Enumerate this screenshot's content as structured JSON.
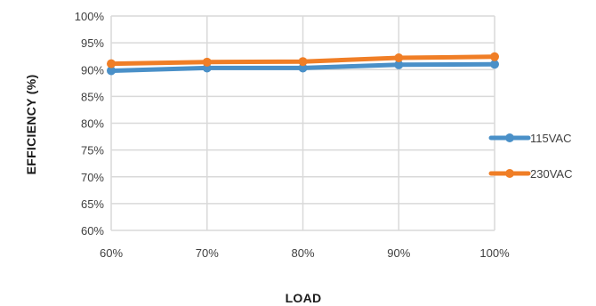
{
  "chart_data": {
    "type": "line",
    "title": "",
    "xlabel": "LOAD",
    "ylabel": "EFFICIENCY (%)",
    "x": [
      "60%",
      "70%",
      "80%",
      "90%",
      "100%"
    ],
    "ylim": [
      60,
      100
    ],
    "yticks": [
      "60%",
      "65%",
      "70%",
      "75%",
      "80%",
      "85%",
      "90%",
      "95%",
      "100%"
    ],
    "grid": true,
    "legend_position": "right",
    "series": [
      {
        "name": "115VAC",
        "color": "#4A90C8",
        "values": [
          89.8,
          90.3,
          90.3,
          90.9,
          91.0
        ]
      },
      {
        "name": "230VAC",
        "color": "#F07E26",
        "values": [
          91.1,
          91.4,
          91.5,
          92.2,
          92.4
        ]
      }
    ]
  }
}
